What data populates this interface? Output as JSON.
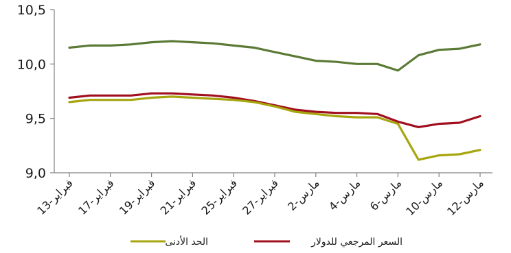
{
  "chart_data": {
    "type": "line",
    "title": "",
    "xlabel": "",
    "ylabel": "",
    "ylim": [
      9.0,
      10.5
    ],
    "yticks": [
      "10,5",
      "10,0",
      "9,5",
      "9,0"
    ],
    "grid": false,
    "legend_position": "bottom",
    "x_tick_labels": [
      "13-فبراير",
      "17-فبراير",
      "19-فبراير",
      "21-فبراير",
      "25-فبراير",
      "27-فبراير",
      "2-مارس",
      "4-مارس",
      "6-مارس",
      "10-مارس",
      "12-مارس"
    ],
    "series": [
      {
        "name": "",
        "color": "#5a7a35",
        "values": [
          10.15,
          10.17,
          10.17,
          10.18,
          10.2,
          10.21,
          10.2,
          10.19,
          10.17,
          10.15,
          10.11,
          10.07,
          10.03,
          10.02,
          10.0,
          10.0,
          9.94,
          10.08,
          10.13,
          10.14,
          10.18
        ]
      },
      {
        "name": "السعر المرجعي للدولار",
        "color": "#a00f1e",
        "values": [
          9.69,
          9.71,
          9.71,
          9.71,
          9.73,
          9.73,
          9.72,
          9.71,
          9.69,
          9.66,
          9.62,
          9.58,
          9.56,
          9.55,
          9.55,
          9.54,
          9.47,
          9.42,
          9.45,
          9.46,
          9.52
        ]
      },
      {
        "name": "الحد الأدنى",
        "color": "#a6a50e",
        "values": [
          9.65,
          9.67,
          9.67,
          9.67,
          9.69,
          9.7,
          9.69,
          9.68,
          9.67,
          9.65,
          9.61,
          9.56,
          9.54,
          9.52,
          9.51,
          9.51,
          9.45,
          9.12,
          9.16,
          9.17,
          9.21
        ]
      }
    ]
  }
}
